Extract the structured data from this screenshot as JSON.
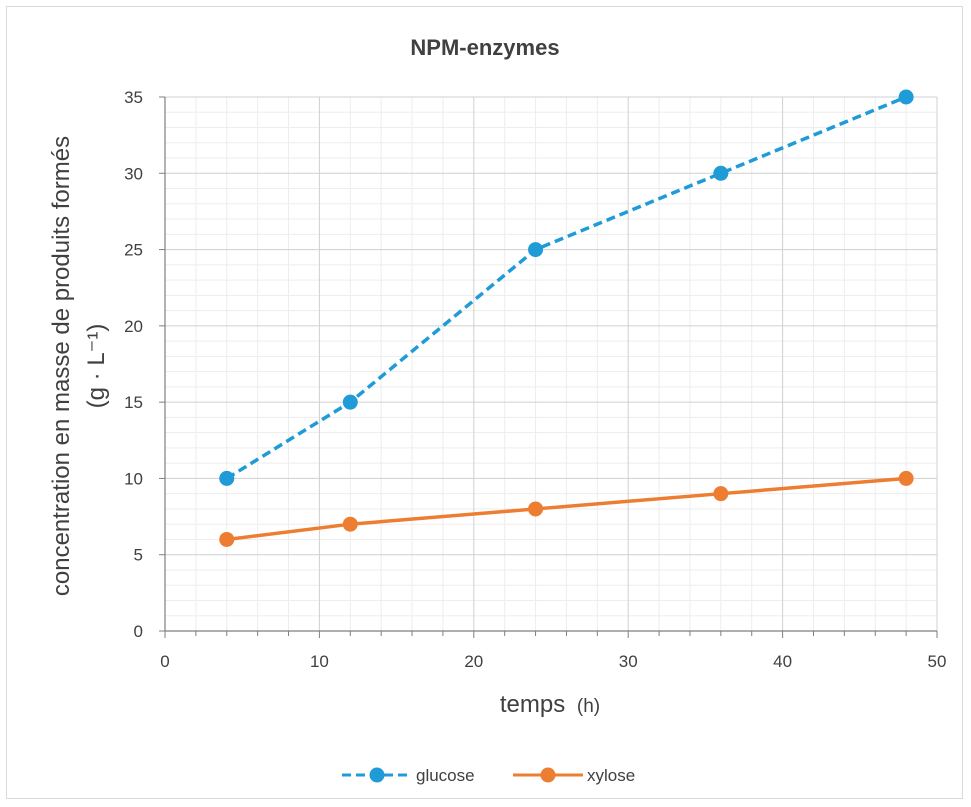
{
  "chart_data": {
    "type": "line",
    "title": "NPM-enzymes",
    "xlabel": "temps",
    "xlabel_unit": "(h)",
    "ylabel_line1": "concentration en masse de produits formés",
    "ylabel_line2": "(g · L⁻¹)",
    "xlim": [
      0,
      50
    ],
    "ylim": [
      0,
      35
    ],
    "x_ticks": [
      "0",
      "10",
      "20",
      "30",
      "40",
      "50"
    ],
    "y_ticks": [
      "0",
      "5",
      "10",
      "15",
      "20",
      "25",
      "30",
      "35"
    ],
    "grid": true,
    "legend_position": "bottom",
    "series": [
      {
        "name": "glucose",
        "x": [
          4,
          12,
          24,
          36,
          48
        ],
        "y": [
          10,
          15,
          25,
          30,
          35
        ],
        "color": "#1f9bd7",
        "line_style": "dashed"
      },
      {
        "name": "xylose",
        "x": [
          4,
          12,
          24,
          36,
          48
        ],
        "y": [
          6,
          7,
          8,
          9,
          10
        ],
        "color": "#ed7d31",
        "line_style": "solid"
      }
    ]
  }
}
